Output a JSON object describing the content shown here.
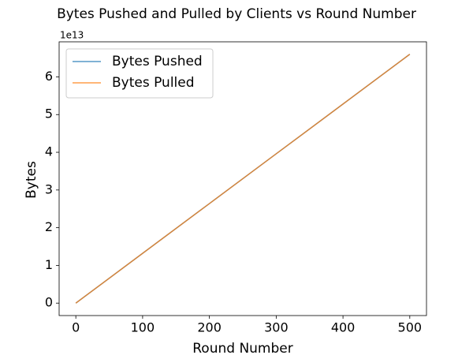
{
  "chart_data": {
    "type": "line",
    "title": "Bytes Pushed and Pulled by Clients vs Round Number",
    "x_label": "Round Number",
    "y_label": "Bytes",
    "y_offset_label": "1e13",
    "x": [
      0,
      100,
      200,
      300,
      400,
      500
    ],
    "series": [
      {
        "name": "Bytes Pushed",
        "color": "#1f77b4",
        "values": [
          0,
          1.32,
          2.64,
          3.96,
          5.28,
          6.6
        ]
      },
      {
        "name": "Bytes Pulled",
        "color": "#ff7f0e",
        "values": [
          0,
          1.32,
          2.64,
          3.96,
          5.28,
          6.6
        ]
      }
    ],
    "xlim": [
      -25,
      525
    ],
    "ylim": [
      -0.33,
      6.93
    ],
    "xticks": [
      0,
      100,
      200,
      300,
      400,
      500
    ],
    "yticks": [
      0,
      1,
      2,
      3,
      4,
      5,
      6
    ],
    "legend": "upper left",
    "grid": false
  }
}
